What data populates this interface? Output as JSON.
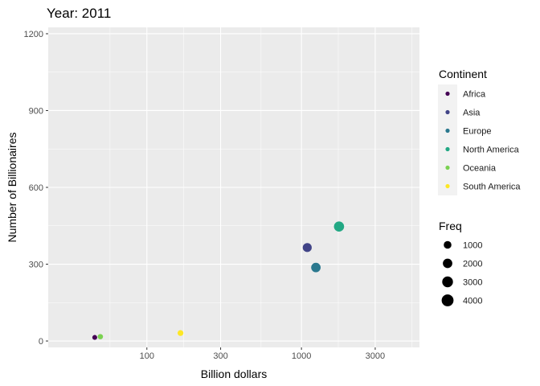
{
  "chart_data": {
    "type": "scatter",
    "title": "Year: 2011",
    "xlabel": "Billion dollars",
    "ylabel": "Number of Billionaires",
    "x_scale": "log10",
    "xlim": [
      23,
      5800
    ],
    "ylim": [
      -25,
      1225
    ],
    "x_ticks": [
      100,
      300,
      1000,
      3000
    ],
    "x_tick_labels": [
      "100",
      "300",
      "1000",
      "3000"
    ],
    "y_ticks": [
      0,
      300,
      600,
      900,
      1200
    ],
    "y_tick_labels": [
      "0",
      "300",
      "600",
      "900",
      "1200"
    ],
    "grid": true,
    "legend_position": "right",
    "color_legend": {
      "title": "Continent",
      "items": [
        {
          "label": "Africa",
          "color": "#440154"
        },
        {
          "label": "Asia",
          "color": "#414487"
        },
        {
          "label": "Europe",
          "color": "#2A788E"
        },
        {
          "label": "North America",
          "color": "#22A884"
        },
        {
          "label": "Oceania",
          "color": "#7AD151"
        },
        {
          "label": "South America",
          "color": "#FDE725"
        }
      ]
    },
    "size_legend": {
      "title": "Freq",
      "items": [
        {
          "label": "1000",
          "value": 1000
        },
        {
          "label": "2000",
          "value": 2000
        },
        {
          "label": "3000",
          "value": 3000
        },
        {
          "label": "4000",
          "value": 4000
        }
      ]
    },
    "points": [
      {
        "continent": "Africa",
        "x": 46,
        "y": 14,
        "freq": 100
      },
      {
        "continent": "Oceania",
        "x": 50,
        "y": 17,
        "freq": 180
      },
      {
        "continent": "South America",
        "x": 165,
        "y": 31,
        "freq": 300
      },
      {
        "continent": "Asia",
        "x": 1090,
        "y": 365,
        "freq": 1700
      },
      {
        "continent": "Europe",
        "x": 1240,
        "y": 287,
        "freq": 2000
      },
      {
        "continent": "North America",
        "x": 1750,
        "y": 447,
        "freq": 2500
      }
    ]
  }
}
